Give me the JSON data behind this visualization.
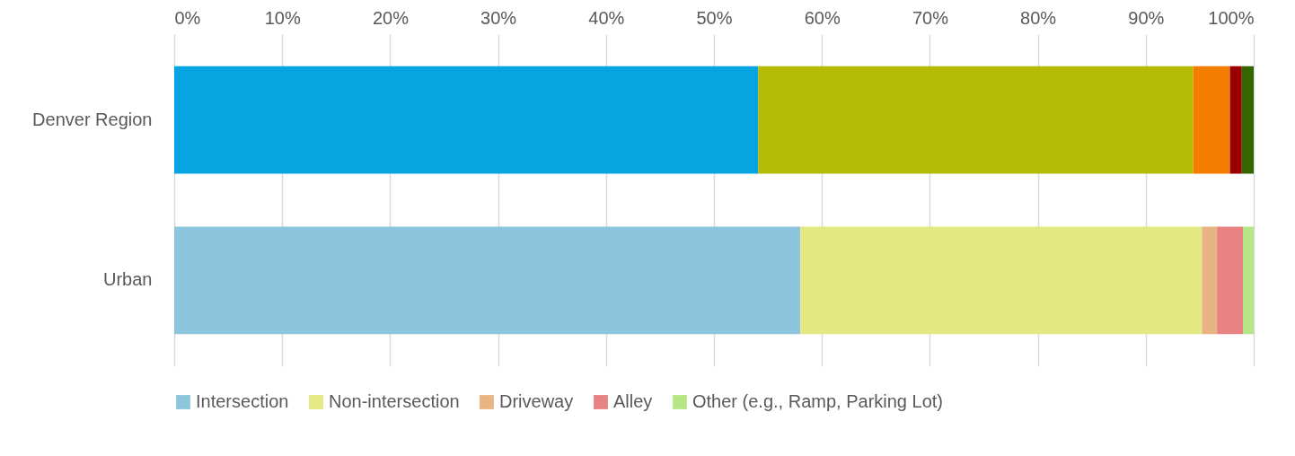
{
  "chart_data": {
    "type": "bar",
    "orientation": "horizontal",
    "stacked": true,
    "categories": [
      "Denver Region",
      "Urban"
    ],
    "series": [
      {
        "name": "Intersection",
        "color": "#8cc5dc",
        "colors": [
          "#06a4e0",
          "#8cc5dc"
        ],
        "values": [
          54.1,
          58.0
        ]
      },
      {
        "name": "Non-intersection",
        "color": "#e3e883",
        "colors": [
          "#b3bb05",
          "#e3e883"
        ],
        "values": [
          40.3,
          37.2
        ]
      },
      {
        "name": "Driveway",
        "color": "#e9b483",
        "colors": [
          "#f47d00",
          "#e9b483"
        ],
        "values": [
          3.4,
          1.4
        ]
      },
      {
        "name": "Alley",
        "color": "#e88283",
        "colors": [
          "#990000",
          "#e88283"
        ],
        "values": [
          1.1,
          2.4
        ]
      },
      {
        "name": "Other (e.g., Ramp, Parking Lot)",
        "color": "#b5e884",
        "colors": [
          "#336600",
          "#b5e884"
        ],
        "values": [
          1.1,
          1.0
        ]
      }
    ],
    "xlim": [
      0,
      100
    ],
    "xticks": [
      {
        "value": 0,
        "label": "0%"
      },
      {
        "value": 10,
        "label": "10%"
      },
      {
        "value": 20,
        "label": "20%"
      },
      {
        "value": 30,
        "label": "30%"
      },
      {
        "value": 40,
        "label": "40%"
      },
      {
        "value": 50,
        "label": "50%"
      },
      {
        "value": 60,
        "label": "60%"
      },
      {
        "value": 70,
        "label": "70%"
      },
      {
        "value": 80,
        "label": "80%"
      },
      {
        "value": 90,
        "label": "90%"
      },
      {
        "value": 100,
        "label": "100%"
      }
    ],
    "grid": true,
    "legend": "bottom"
  }
}
